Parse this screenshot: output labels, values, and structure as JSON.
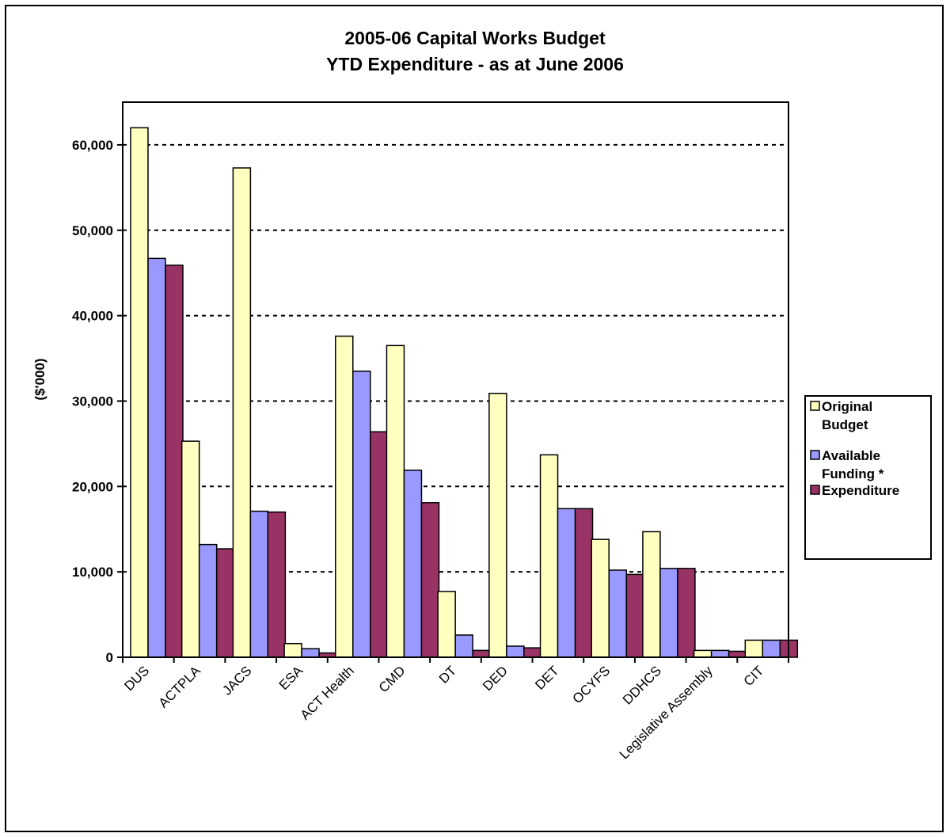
{
  "chart_data": {
    "type": "bar",
    "title": [
      "2005-06 Capital Works Budget",
      "YTD Expenditure - as at June 2006"
    ],
    "xlabel": "",
    "ylabel": "($'000)",
    "ylim": [
      0,
      65000
    ],
    "yticks": [
      0,
      10000,
      20000,
      30000,
      40000,
      50000,
      60000
    ],
    "ytick_labels": [
      "0",
      "10,000",
      "20,000",
      "30,000",
      "40,000",
      "50,000",
      "60,000"
    ],
    "grid": "horizontal dashed",
    "legend_position": "right",
    "categories": [
      "DUS",
      "ACTPLA",
      "JACS",
      "ESA",
      "ACT Health",
      "CMD",
      "DT",
      "DED",
      "DET",
      "OCYFS",
      "DDHCS",
      "Legislative Assembly",
      "CIT"
    ],
    "series": [
      {
        "name": [
          "Original",
          "Budget"
        ],
        "color": "#ffffc0",
        "values": [
          62000,
          25300,
          57300,
          1600,
          37600,
          36500,
          7700,
          30900,
          23700,
          13800,
          14700,
          800,
          2000
        ]
      },
      {
        "name": [
          "Available",
          "Funding *"
        ],
        "color": "#9999ff",
        "values": [
          46700,
          13200,
          17100,
          1000,
          33500,
          21900,
          2600,
          1300,
          17400,
          10200,
          10400,
          800,
          2000
        ]
      },
      {
        "name": [
          "Expenditure"
        ],
        "color": "#993366",
        "values": [
          45900,
          12700,
          17000,
          500,
          26400,
          18100,
          800,
          1100,
          17400,
          9700,
          10400,
          700,
          2000
        ]
      }
    ]
  }
}
